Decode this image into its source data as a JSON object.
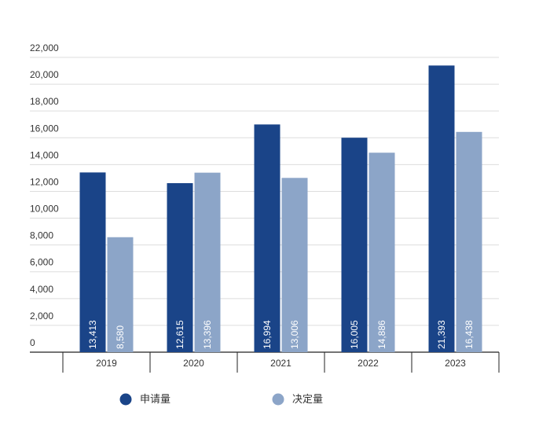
{
  "chart_data": {
    "type": "bar",
    "categories": [
      "2019",
      "2020",
      "2021",
      "2022",
      "2023"
    ],
    "series": [
      {
        "name": "申请量",
        "color": "#1a4488",
        "values": [
          13413,
          12615,
          16994,
          16005,
          21393
        ],
        "value_labels": [
          "13,413",
          "12,615",
          "16,994",
          "16,005",
          "21,393"
        ]
      },
      {
        "name": "决定量",
        "color": "#8ca5c8",
        "values": [
          8580,
          13396,
          13006,
          14886,
          16438
        ],
        "value_labels": [
          "8,580",
          "13,396",
          "13,006",
          "14,886",
          "16,438"
        ]
      }
    ],
    "ylim": [
      0,
      22000
    ],
    "yticks": [
      0,
      {
        "value": 2000,
        "label": "2,000"
      },
      {
        "value": 4000,
        "label": "4,000"
      },
      {
        "value": 6000,
        "label": "6,000"
      },
      {
        "value": 8000,
        "label": "8,000"
      },
      {
        "value": 10000,
        "label": "10,000"
      },
      {
        "value": 12000,
        "label": "12,000"
      },
      {
        "value": 14000,
        "label": "14,000"
      },
      {
        "value": 16000,
        "label": "16,000"
      },
      {
        "value": 18000,
        "label": "18,000"
      },
      {
        "value": 20000,
        "label": "20,000"
      },
      {
        "value": 22000,
        "label": "22,000"
      }
    ],
    "grid": true
  }
}
